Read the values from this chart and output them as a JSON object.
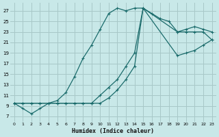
{
  "xlabel": "Humidex (Indice chaleur)",
  "bg_color": "#c8e8e8",
  "grid_color": "#a8c8c8",
  "line_color": "#1a6b6b",
  "xlim": [
    -0.5,
    23.5
  ],
  "ylim": [
    6.0,
    28.5
  ],
  "yticks": [
    7,
    9,
    11,
    13,
    15,
    17,
    19,
    21,
    23,
    25,
    27
  ],
  "xticks": [
    0,
    1,
    2,
    3,
    4,
    5,
    6,
    7,
    8,
    9,
    10,
    11,
    12,
    13,
    14,
    15,
    16,
    17,
    18,
    19,
    20,
    21,
    22,
    23
  ],
  "xtick_labels": [
    "0",
    "1",
    "2",
    "3",
    "4",
    "5",
    "6",
    "7",
    "8",
    "9",
    "10",
    "11",
    "12",
    "13",
    "14",
    "15",
    "16",
    "17",
    "18",
    "19",
    "20",
    "21",
    "22",
    "23"
  ],
  "series1_x": [
    0,
    1,
    2,
    3,
    4,
    5,
    6,
    7,
    8,
    9,
    10,
    11,
    12,
    13,
    14,
    15,
    16,
    17,
    18,
    19,
    20,
    21,
    22,
    23
  ],
  "series1_y": [
    9.5,
    8.5,
    7.5,
    8.5,
    9.5,
    10.0,
    11.5,
    14.5,
    18.0,
    20.5,
    23.5,
    26.5,
    27.5,
    27.0,
    27.5,
    27.5,
    26.5,
    25.5,
    25.0,
    23.0,
    23.0,
    23.0,
    23.0,
    21.5
  ],
  "series2_x": [
    0,
    1,
    2,
    3,
    4,
    5,
    6,
    7,
    8,
    9,
    10,
    11,
    12,
    13,
    14,
    15,
    19,
    20,
    21,
    22,
    23
  ],
  "series2_y": [
    9.5,
    9.5,
    9.5,
    9.5,
    9.5,
    9.5,
    9.5,
    9.5,
    9.5,
    9.5,
    11.0,
    12.5,
    14.0,
    16.5,
    19.0,
    27.5,
    23.0,
    23.5,
    24.0,
    23.5,
    23.0
  ],
  "series3_x": [
    0,
    1,
    2,
    3,
    4,
    5,
    6,
    7,
    8,
    9,
    10,
    11,
    12,
    13,
    14,
    15,
    19,
    20,
    21,
    22,
    23
  ],
  "series3_y": [
    9.5,
    9.5,
    9.5,
    9.5,
    9.5,
    9.5,
    9.5,
    9.5,
    9.5,
    9.5,
    9.5,
    10.5,
    12.0,
    14.0,
    16.5,
    27.5,
    18.5,
    19.0,
    19.5,
    20.5,
    21.5
  ]
}
